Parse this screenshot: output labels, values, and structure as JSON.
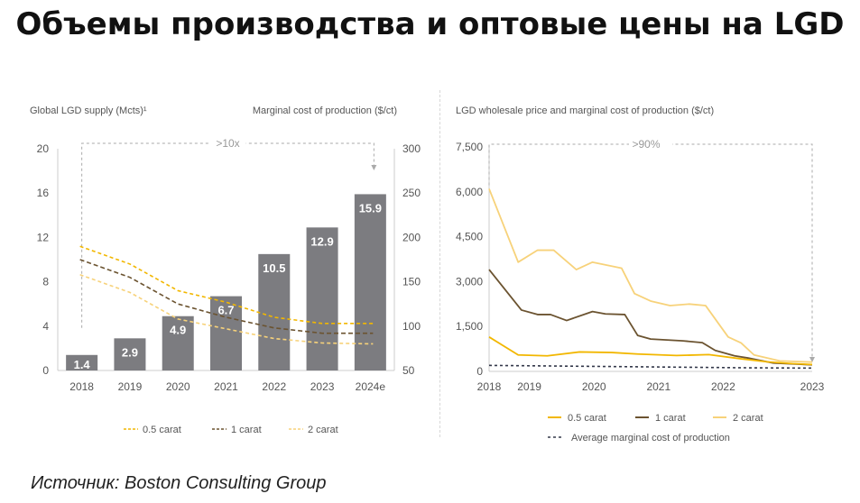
{
  "title": "Объемы производства и оптовые цены на LGD",
  "source": {
    "label": "Источник:",
    "name": "Boston Consulting Group"
  },
  "colors": {
    "bar": "#7c7c80",
    "c05": "#f2b700",
    "c1": "#6b5330",
    "c2": "#f7d27a",
    "avg": "#33384a",
    "axis": "#cccccc",
    "text": "#555555"
  },
  "chart_data": [
    {
      "type": "bar",
      "title": "Global LGD supply (Mcts)¹",
      "secondary_title": "Marginal cost of production ($/ct)",
      "annotation": ">10x",
      "categories": [
        "2018",
        "2019",
        "2020",
        "2021",
        "2022",
        "2023",
        "2024e"
      ],
      "values": [
        1.4,
        2.9,
        4.9,
        6.7,
        10.5,
        12.9,
        15.9
      ],
      "value_labels": [
        "1.4",
        "2.9",
        "4.9",
        "6.7",
        "10.5",
        "12.9",
        "15.9"
      ],
      "ylim": [
        0,
        20
      ],
      "yticks": [
        "0",
        "4",
        "8",
        "12",
        "16",
        "20"
      ],
      "y2lim": [
        50,
        300
      ],
      "y2ticks": [
        "50",
        "100",
        "150",
        "200",
        "250",
        "300"
      ],
      "series": [
        {
          "name": "0.5 carat",
          "values": [
            190,
            170,
            140,
            127,
            110,
            103,
            103
          ]
        },
        {
          "name": "1 carat",
          "values": [
            175,
            155,
            125,
            110,
            98,
            92,
            92
          ]
        },
        {
          "name": "2 carat",
          "values": [
            158,
            138,
            108,
            97,
            86,
            81,
            80
          ]
        }
      ],
      "legend": [
        "0.5 carat",
        "1 carat",
        "2 carat"
      ]
    },
    {
      "type": "line",
      "title": "LGD wholesale price and marginal cost of production ($/ct)",
      "annotation": ">90%",
      "xlim": [
        2018,
        2023
      ],
      "xticks": [
        "2018",
        "2019",
        "2020",
        "2021",
        "2022",
        "2023"
      ],
      "ylim": [
        0,
        7500
      ],
      "yticks": [
        "0",
        "1,500",
        "3,000",
        "4,500",
        "6,000",
        "7,500"
      ],
      "series": [
        {
          "name": "0.5 carat",
          "x": [
            2018,
            2018.45,
            2018.9,
            2019.4,
            2019.9,
            2020.3,
            2020.9,
            2021.4,
            2021.9,
            2022.3,
            2022.7,
            2023
          ],
          "y": [
            1150,
            550,
            520,
            650,
            630,
            580,
            530,
            560,
            420,
            320,
            260,
            230
          ]
        },
        {
          "name": "1 carat",
          "x": [
            2018,
            2018.5,
            2018.75,
            2018.95,
            2019.2,
            2019.6,
            2019.8,
            2020.1,
            2020.3,
            2020.5,
            2021,
            2021.3,
            2021.5,
            2021.8,
            2022,
            2022.4,
            2023
          ],
          "y": [
            3400,
            2050,
            1900,
            1900,
            1700,
            2000,
            1920,
            1900,
            1200,
            1080,
            1020,
            960,
            700,
            520,
            450,
            280,
            220
          ]
        },
        {
          "name": "2 carat",
          "x": [
            2018,
            2018.45,
            2018.75,
            2019,
            2019.35,
            2019.6,
            2020.05,
            2020.25,
            2020.5,
            2020.8,
            2021.1,
            2021.35,
            2021.7,
            2021.9,
            2022.1,
            2022.5,
            2023
          ],
          "y": [
            6100,
            3650,
            4050,
            4050,
            3400,
            3650,
            3450,
            2600,
            2350,
            2200,
            2250,
            2200,
            1150,
            950,
            550,
            350,
            310
          ]
        },
        {
          "name": "Average marginal cost of production",
          "x": [
            2018,
            2019,
            2020,
            2021,
            2022,
            2023
          ],
          "y": [
            200,
            180,
            160,
            140,
            120,
            110
          ]
        }
      ],
      "legend": [
        "0.5 carat",
        "1 carat",
        "2 carat",
        "Average marginal cost of production"
      ]
    }
  ]
}
